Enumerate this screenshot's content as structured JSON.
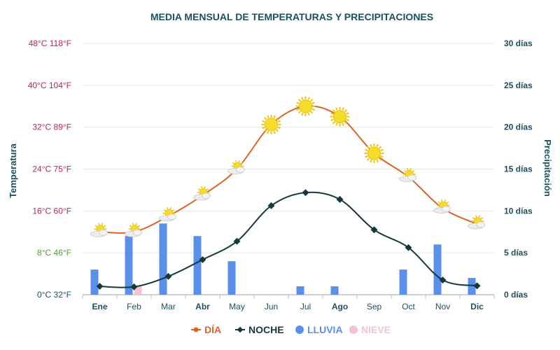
{
  "chart_data": {
    "type": "bar+line",
    "title": "MEDIA MENSUAL DE TEMPERATURAS Y PRECIPITACIONES",
    "categories": [
      "Ene",
      "Feb",
      "Mar",
      "Abr",
      "May",
      "Jun",
      "Jul",
      "Ago",
      "Sep",
      "Oct",
      "Nov",
      "Dic"
    ],
    "left_axis": {
      "title": "Temperatura",
      "ticks": [
        {
          "value": 0,
          "label": "0°C 32°F",
          "color": "#1f4e5f"
        },
        {
          "value": 8,
          "label": "8°C 46°F",
          "color": "#5a9a3c"
        },
        {
          "value": 16,
          "label": "16°C 60°F",
          "color": "#b5294b"
        },
        {
          "value": 24,
          "label": "24°C 75°F",
          "color": "#b5294b"
        },
        {
          "value": 32,
          "label": "32°C 89°F",
          "color": "#b5294b"
        },
        {
          "value": 40,
          "label": "40°C 104°F",
          "color": "#b5294b"
        },
        {
          "value": 48,
          "label": "48°C 118°F",
          "color": "#b5294b"
        }
      ],
      "ylim": [
        0,
        48
      ]
    },
    "right_axis": {
      "title": "Precipitación",
      "ticks": [
        {
          "value": 0,
          "label": "0 días"
        },
        {
          "value": 5,
          "label": "5 días"
        },
        {
          "value": 10,
          "label": "10 días"
        },
        {
          "value": 15,
          "label": "15 días"
        },
        {
          "value": 20,
          "label": "20 días"
        },
        {
          "value": 25,
          "label": "25 días"
        },
        {
          "value": 30,
          "label": "30 días"
        }
      ],
      "ylim": [
        0,
        30
      ]
    },
    "series": [
      {
        "name": "DÍA",
        "kind": "line",
        "axis": "left",
        "color": "#d9652b",
        "values": [
          12,
          12,
          15,
          19,
          24,
          32.5,
          36,
          34,
          27,
          22.5,
          16.5,
          13.5
        ],
        "icons": [
          "partly-cloudy",
          "partly-cloudy",
          "partly-cloudy",
          "partly-cloudy",
          "partly-cloudy",
          "sun",
          "sun",
          "sun",
          "sun",
          "partly-cloudy",
          "partly-cloudy",
          "partly-cloudy"
        ]
      },
      {
        "name": "NOCHE",
        "kind": "line",
        "axis": "left",
        "color": "#16383b",
        "values": [
          1.6,
          1.5,
          3.5,
          6.7,
          10.2,
          17,
          19.5,
          18.2,
          12.4,
          9,
          2.8,
          1.7
        ]
      },
      {
        "name": "LLUVIA",
        "kind": "bar",
        "axis": "right",
        "color": "#5b8fe8",
        "values": [
          3,
          7,
          8.5,
          7,
          4,
          0,
          1,
          1,
          0,
          3,
          6,
          2
        ]
      },
      {
        "name": "NIEVE",
        "kind": "bar",
        "axis": "right",
        "color": "#f5c2cf",
        "values": [
          0,
          1,
          0,
          0,
          0,
          0,
          0,
          0,
          0,
          0,
          0,
          0
        ]
      }
    ],
    "legend": {
      "position": "bottom"
    }
  }
}
